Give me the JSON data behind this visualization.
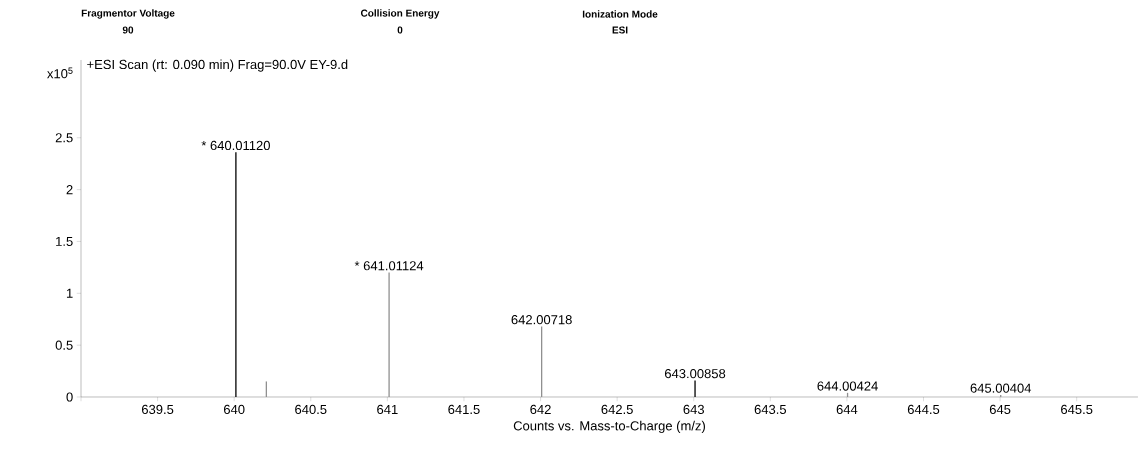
{
  "chart_data": {
    "type": "bar",
    "title": "+ESI Scan (rt: 0.090 min) Frag=90.0V EY-9.d",
    "xlabel": "Counts vs. Mass-to-Charge (m/z)",
    "ylabel": "x10$^{5}$",
    "annotations": [
      "Fragmentor Voltage",
      "90",
      "Collision Energy",
      "0",
      "Ionization Mode",
      "ESI",
      {
        "text": "* 640.01120",
        "x": 640.0112,
        "y": 2.36
      },
      {
        "text": "* 641.01124",
        "x": 641.01124,
        "y": 1.2
      },
      {
        "text": "642.00718",
        "x": 642.00718,
        "y": 0.68
      },
      {
        "text": "643.00858",
        "x": 643.00858,
        "y": 0.16
      },
      {
        "text": "644.00424",
        "x": 644.00424,
        "y": 0.04
      },
      {
        "text": "645.00404",
        "x": 645.00404,
        "y": 0.02
      }
    ],
    "x": [
      640.0112,
      640.21,
      641.01124,
      642.00718,
      643.00858,
      644.00424,
      645.00404
    ],
    "values": [
      2.36,
      0.15,
      1.2,
      0.68,
      0.16,
      0.04,
      0.02
    ],
    "colors": [
      "#000000",
      "#909090",
      "#909090",
      "#909090",
      "#000000",
      "#909090",
      "#909090"
    ],
    "xlim": [
      639,
      645.9
    ],
    "ylim": [
      0,
      3.25
    ],
    "xticks": [
      {
        "value": 639,
        "label": null
      },
      639.5,
      640,
      640.5,
      641,
      641.5,
      642,
      642.5,
      643,
      643.5,
      644,
      644.5,
      645,
      645.5
    ],
    "yticks": [
      0,
      0.5,
      1,
      1.5,
      2,
      2.5
    ]
  }
}
